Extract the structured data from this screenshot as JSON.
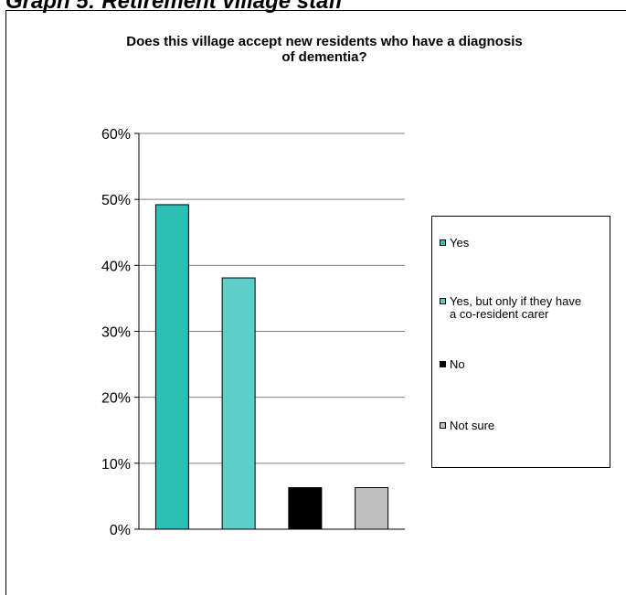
{
  "page_heading": "Graph 5: Retirement village staff",
  "chart_data": {
    "type": "bar",
    "title_lines": [
      "Does this village accept new residents who have a diagnosis",
      "of dementia?"
    ],
    "categories": [
      "Yes",
      "Yes, but only if they have a co-resident carer",
      "No",
      "Not sure"
    ],
    "values": [
      49.2,
      38.1,
      6.3,
      6.3
    ],
    "colors": [
      "#2bbfb5",
      "#5ecec8",
      "#000000",
      "#c0c0c0"
    ],
    "y_ticks": [
      "0%",
      "10%",
      "20%",
      "30%",
      "40%",
      "50%",
      "60%"
    ],
    "ylim": [
      0,
      60
    ],
    "grid": true,
    "legend_position": "right",
    "legend": [
      {
        "label_lines": [
          "Yes"
        ],
        "color": "#2bbfb5"
      },
      {
        "label_lines": [
          "Yes, but only if they have",
          "a co-resident carer"
        ],
        "color": "#5ecec8"
      },
      {
        "label_lines": [
          "No"
        ],
        "color": "#000000"
      },
      {
        "label_lines": [
          "Not sure"
        ],
        "color": "#c0c0c0"
      }
    ]
  }
}
